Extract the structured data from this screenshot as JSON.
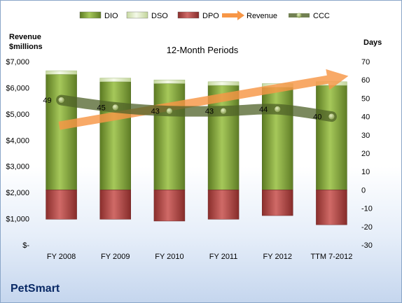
{
  "company": "PetSmart",
  "chart_data": {
    "type": "bar",
    "title": "12-Month Periods",
    "ylabel_left": "Revenue\n$millions",
    "ylabel_right": "Days",
    "categories": [
      "FY 2008",
      "FY 2009",
      "FY 2010",
      "FY 2011",
      "FY 2012",
      "TTM 7-2012"
    ],
    "left_axis": {
      "ylim": [
        0,
        7000
      ],
      "ticks": [
        "$-",
        "$1,000",
        "$2,000",
        "$3,000",
        "$4,000",
        "$5,000",
        "$6,000",
        "$7,000"
      ]
    },
    "right_axis": {
      "ylim": [
        -30,
        70
      ],
      "ticks": [
        "-30",
        "-20",
        "-10",
        "0",
        "10",
        "20",
        "30",
        "40",
        "50",
        "60",
        "70"
      ]
    },
    "legend": [
      "DIO",
      "DSO",
      "DPO",
      "Revenue",
      "CCC"
    ],
    "legend_position": "top",
    "series": [
      {
        "name": "DIO",
        "axis": "right",
        "kind": "stacked-bar",
        "color": "#77933c",
        "values": [
          63,
          59,
          58,
          57,
          56,
          57
        ]
      },
      {
        "name": "DSO",
        "axis": "right",
        "kind": "stacked-bar",
        "color": "#d7e4bd",
        "values": [
          2,
          2,
          2,
          2,
          2,
          2
        ]
      },
      {
        "name": "DPO",
        "axis": "right",
        "kind": "stacked-bar",
        "color": "#953735",
        "values": [
          -16,
          -16,
          -17,
          -16,
          -14,
          -19
        ]
      },
      {
        "name": "CCC",
        "axis": "right",
        "kind": "line",
        "color": "#4f6228",
        "values": [
          49,
          45,
          43,
          43,
          44,
          40
        ],
        "data_labels": [
          "49",
          "45",
          "43",
          "43",
          "44",
          "40"
        ]
      },
      {
        "name": "Revenue",
        "axis": "left",
        "kind": "trend-arrow",
        "color": "#f79646",
        "from": 4550,
        "to": 6450
      }
    ]
  }
}
